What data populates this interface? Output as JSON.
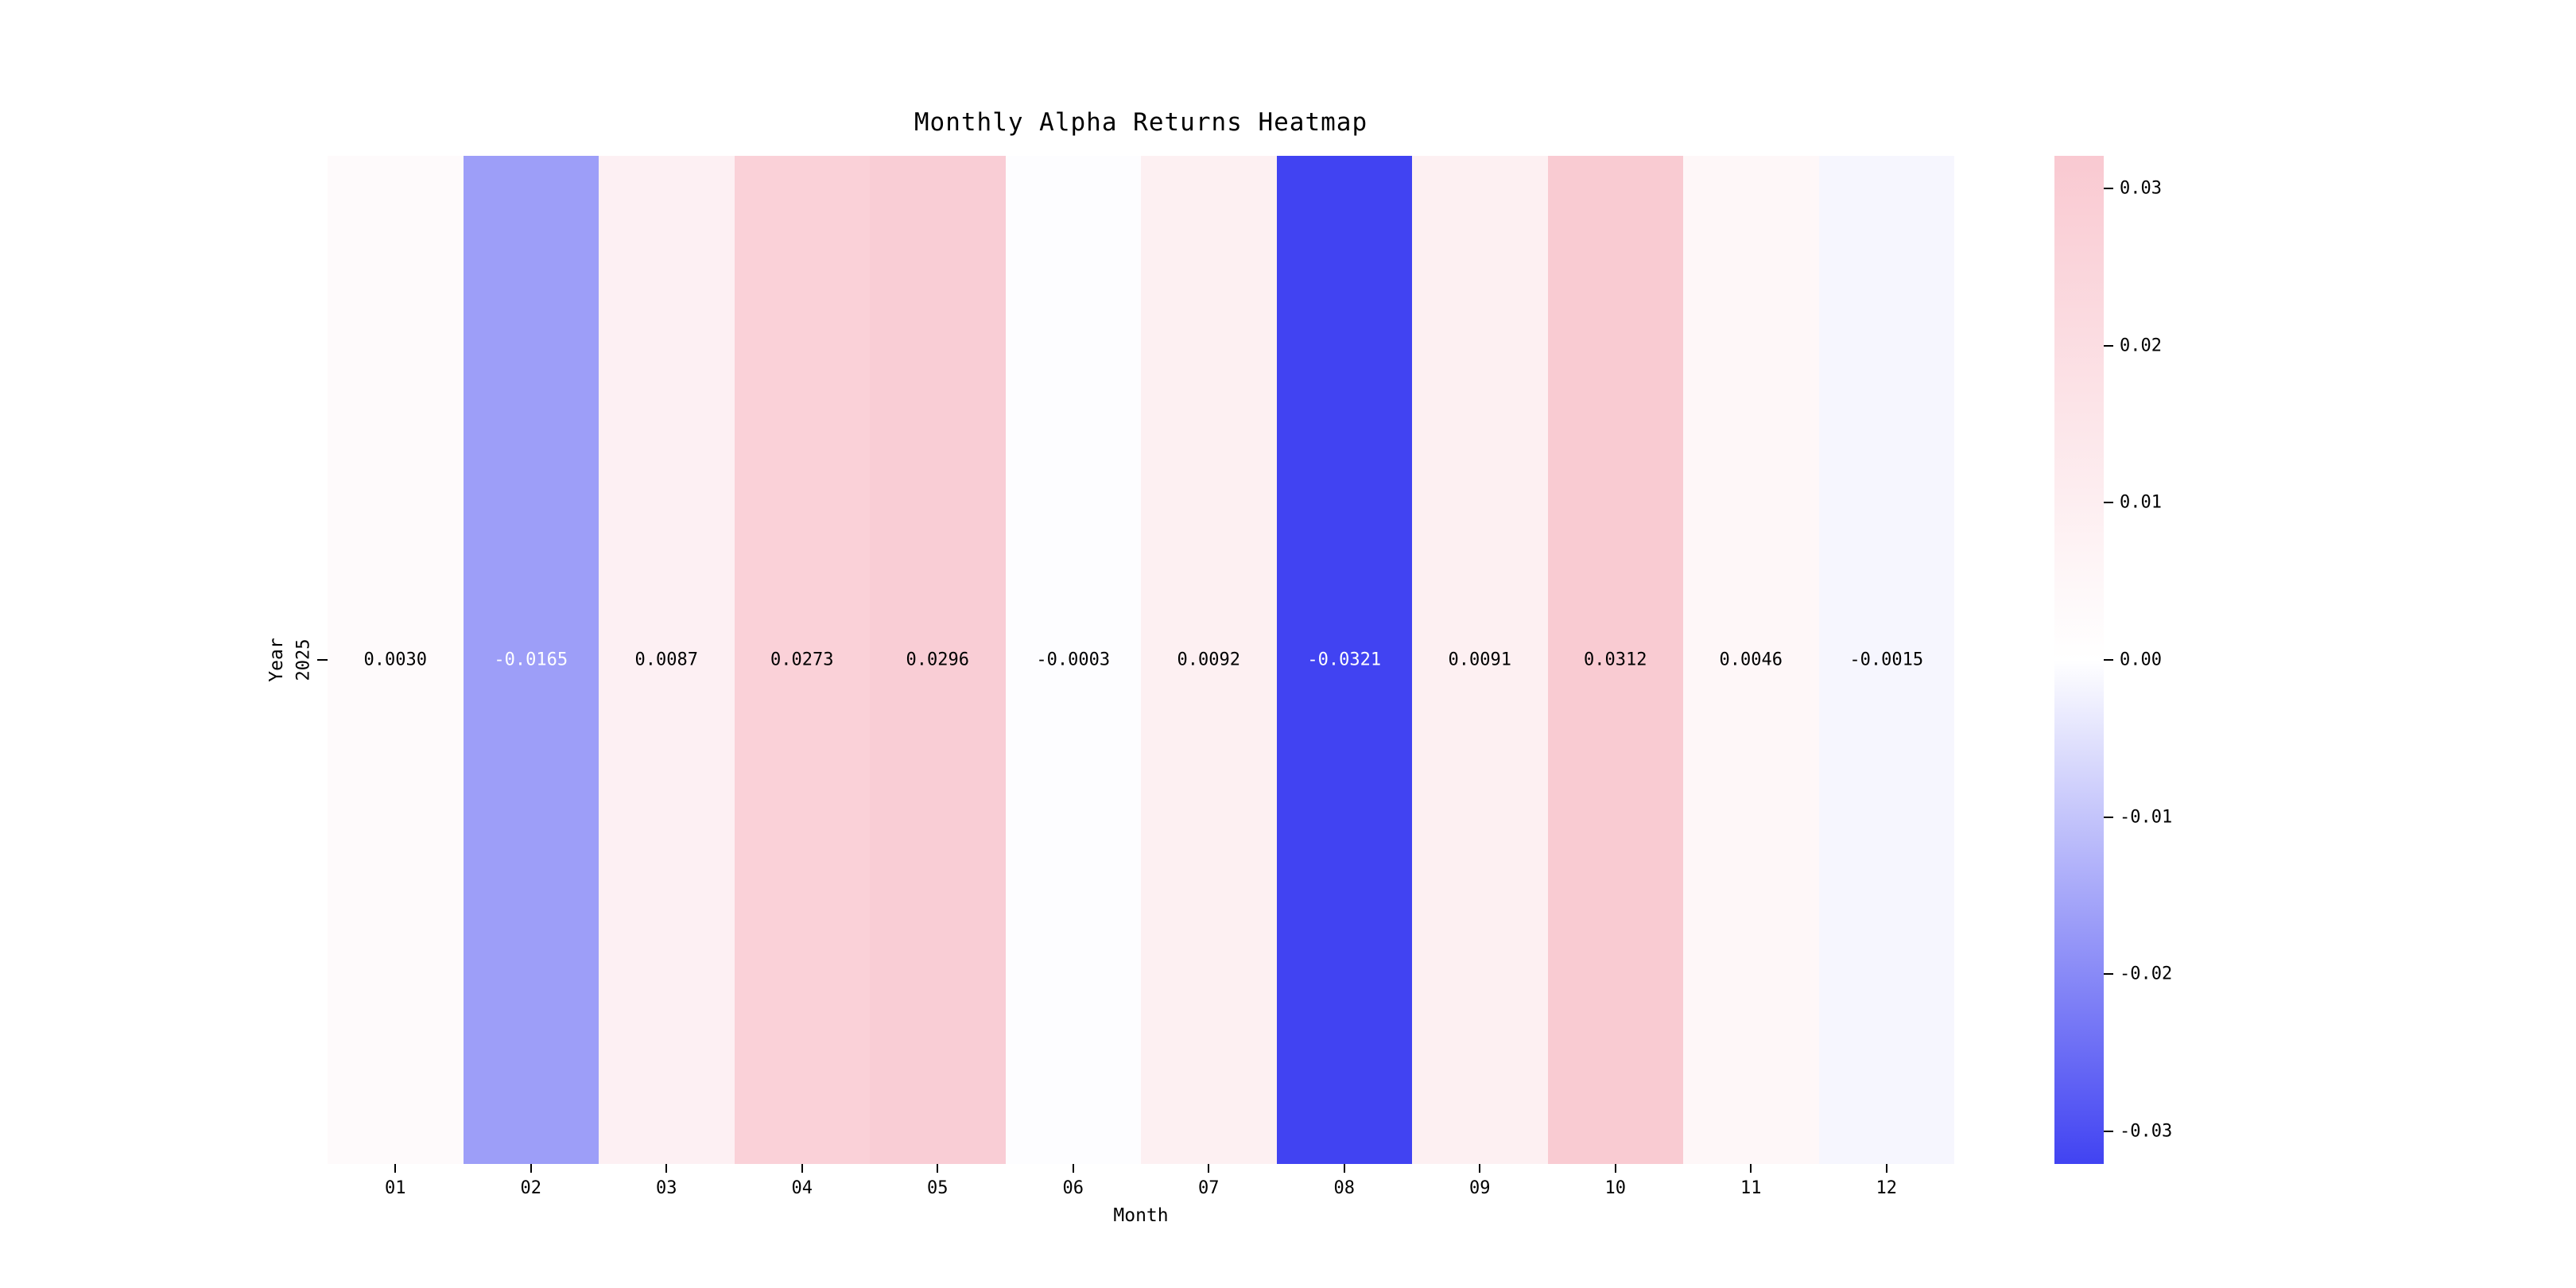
{
  "figure": {
    "background_color": "#ffffff"
  },
  "chart_data": {
    "type": "heatmap",
    "title": "Monthly Alpha Returns Heatmap",
    "xlabel": "Month",
    "ylabel": "Year",
    "x_categories": [
      "01",
      "02",
      "03",
      "04",
      "05",
      "06",
      "07",
      "08",
      "09",
      "10",
      "11",
      "12"
    ],
    "y_categories": [
      "2025"
    ],
    "values": [
      [
        0.003,
        -0.0165,
        0.0087,
        0.0273,
        0.0296,
        -0.0003,
        0.0092,
        -0.0321,
        0.0091,
        0.0312,
        0.0046,
        -0.0015
      ]
    ],
    "value_decimals": 4,
    "vmin": -0.0321,
    "vmax": 0.0321,
    "grid": false,
    "legend_position": "right",
    "colorbar": {
      "ticks": [
        0.03,
        0.02,
        0.01,
        0.0,
        -0.01,
        -0.02,
        -0.03
      ],
      "tick_decimals": 2
    },
    "colormap": {
      "negative_color": "#4143f2",
      "zero_color": "#ffffff",
      "positive_color": "#f9c9d1"
    }
  }
}
